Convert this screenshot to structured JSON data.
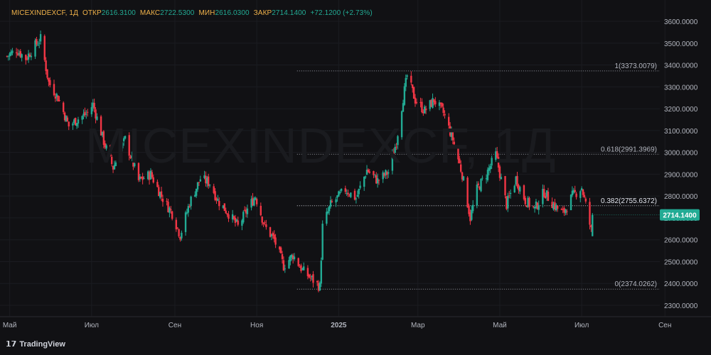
{
  "header": {
    "symbol": "MICEXINDEXCF, 1Д",
    "open_label": "ОТКР",
    "open_value": "2616.3100",
    "high_label": "МАКС",
    "high_value": "2722.5300",
    "low_label": "МИН",
    "low_value": "2616.0300",
    "close_label": "ЗАКР",
    "close_value": "2714.1400",
    "change": "+72.1200 (+2.73%)"
  },
  "watermark": "MICEXINDEXCF, 1Д",
  "brand": {
    "name": "TradingView",
    "logo": "𝟭𝟳"
  },
  "colors": {
    "background": "#111114",
    "up": "#22ab94",
    "down": "#f23645",
    "fib_line": "#9598a1",
    "price_badge": "#22ab94",
    "text": "#b2b5be",
    "header_symbol": "#f0b24a"
  },
  "chart_data": {
    "type": "candlestick",
    "ylim": [
      2250,
      3650
    ],
    "y_ticks": [
      "3600.0000",
      "3500.0000",
      "3400.0000",
      "3300.0000",
      "3200.0000",
      "3100.0000",
      "3000.0000",
      "2900.0000",
      "2800.0000",
      "2700.0000",
      "2600.0000",
      "2500.0000",
      "2400.0000",
      "2300.0000"
    ],
    "y_tick_values": [
      3600,
      3500,
      3400,
      3300,
      3200,
      3100,
      3000,
      2900,
      2800,
      2700,
      2600,
      2500,
      2400,
      2300
    ],
    "x_labels": [
      "Май",
      "Июл",
      "Сен",
      "Ноя",
      "2025",
      "Мар",
      "Май",
      "Июл",
      "Сен"
    ],
    "x_label_dates": [
      "2024-05-01",
      "2024-07-01",
      "2024-09-01",
      "2024-11-01",
      "2025-01-01",
      "2025-03-01",
      "2025-05-01",
      "2025-07-01",
      "2025-09-01"
    ],
    "x_range": [
      "2024-04-28",
      "2025-09-30"
    ],
    "last_price": "2714.1400",
    "last_price_value": 2714.14,
    "fib_levels": [
      {
        "label": "1(3373.0079)",
        "value": 3373.0079,
        "start": "2024-12-01"
      },
      {
        "label": "0.618(2991.3969)",
        "value": 2991.3969,
        "start": "2024-12-01"
      },
      {
        "label": "0.382(2755.6372)",
        "value": 2755.6372,
        "start": "2024-12-01"
      },
      {
        "label": "0(2374.0262)",
        "value": 2374.0262,
        "start": "2024-12-01"
      }
    ],
    "close_path": [
      [
        "2024-04-29",
        3440
      ],
      [
        "2024-05-06",
        3470
      ],
      [
        "2024-05-13",
        3430
      ],
      [
        "2024-05-20",
        3490
      ],
      [
        "2024-05-24",
        3520
      ],
      [
        "2024-05-30",
        3320
      ],
      [
        "2024-06-06",
        3250
      ],
      [
        "2024-06-14",
        3120
      ],
      [
        "2024-06-20",
        3150
      ],
      [
        "2024-06-28",
        3180
      ],
      [
        "2024-07-02",
        3220
      ],
      [
        "2024-07-10",
        3050
      ],
      [
        "2024-07-17",
        2930
      ],
      [
        "2024-07-26",
        3060
      ],
      [
        "2024-08-05",
        2870
      ],
      [
        "2024-08-14",
        2900
      ],
      [
        "2024-08-22",
        2800
      ],
      [
        "2024-08-30",
        2720
      ],
      [
        "2024-09-05",
        2620
      ],
      [
        "2024-09-12",
        2770
      ],
      [
        "2024-09-20",
        2880
      ],
      [
        "2024-09-27",
        2860
      ],
      [
        "2024-10-03",
        2780
      ],
      [
        "2024-10-11",
        2720
      ],
      [
        "2024-10-18",
        2660
      ],
      [
        "2024-10-25",
        2740
      ],
      [
        "2024-10-31",
        2800
      ],
      [
        "2024-11-07",
        2660
      ],
      [
        "2024-11-14",
        2600
      ],
      [
        "2024-11-21",
        2480
      ],
      [
        "2024-11-28",
        2530
      ],
      [
        "2024-12-05",
        2460
      ],
      [
        "2024-12-12",
        2420
      ],
      [
        "2024-12-18",
        2385
      ],
      [
        "2024-12-20",
        2660
      ],
      [
        "2024-12-26",
        2760
      ],
      [
        "2025-01-06",
        2830
      ],
      [
        "2025-01-14",
        2790
      ],
      [
        "2025-01-22",
        2920
      ],
      [
        "2025-01-30",
        2870
      ],
      [
        "2025-02-07",
        2910
      ],
      [
        "2025-02-13",
        3050
      ],
      [
        "2025-02-18",
        3250
      ],
      [
        "2025-02-21",
        3350
      ],
      [
        "2025-02-27",
        3240
      ],
      [
        "2025-03-06",
        3190
      ],
      [
        "2025-03-13",
        3240
      ],
      [
        "2025-03-20",
        3180
      ],
      [
        "2025-03-27",
        3060
      ],
      [
        "2025-04-03",
        2900
      ],
      [
        "2025-04-09",
        2700
      ],
      [
        "2025-04-14",
        2830
      ],
      [
        "2025-04-21",
        2900
      ],
      [
        "2025-04-28",
        2990
      ],
      [
        "2025-05-06",
        2760
      ],
      [
        "2025-05-13",
        2880
      ],
      [
        "2025-05-20",
        2780
      ],
      [
        "2025-05-27",
        2740
      ],
      [
        "2025-06-03",
        2820
      ],
      [
        "2025-06-10",
        2760
      ],
      [
        "2025-06-17",
        2720
      ],
      [
        "2025-06-24",
        2800
      ],
      [
        "2025-07-01",
        2840
      ],
      [
        "2025-07-04",
        2760
      ],
      [
        "2025-07-08",
        2642
      ],
      [
        "2025-07-09",
        2714
      ]
    ],
    "last_candle": {
      "date": "2025-07-09",
      "open": 2616.31,
      "high": 2722.53,
      "low": 2616.03,
      "close": 2714.14
    }
  }
}
